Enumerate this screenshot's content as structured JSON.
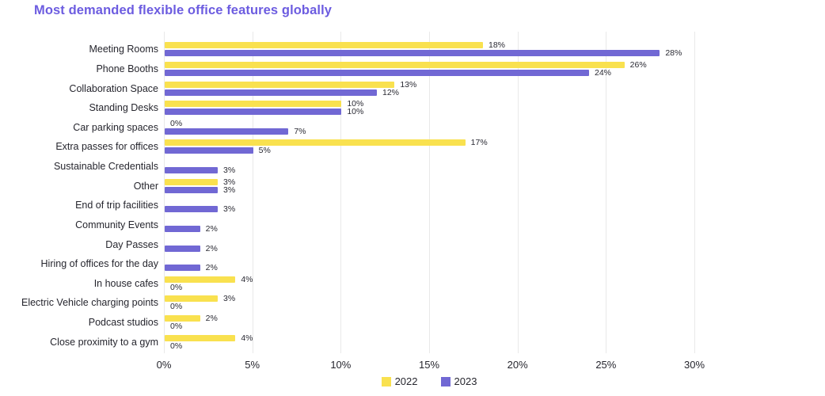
{
  "title": "Most demanded flexible office features globally",
  "colors": {
    "title": "#6C5CE0",
    "gridline": "#E9E9E9",
    "text": "#26262E",
    "background": "#FFFFFF"
  },
  "chart_data": {
    "type": "bar",
    "orientation": "horizontal",
    "title": "Most demanded flexible office features globally",
    "xlabel": "",
    "ylabel": "",
    "xlim": [
      0,
      30
    ],
    "x_ticks": [
      "0%",
      "5%",
      "10%",
      "15%",
      "20%",
      "25%",
      "30%"
    ],
    "x_tick_values": [
      0,
      5,
      10,
      15,
      20,
      25,
      30
    ],
    "grid": "vertical",
    "legend_position": "bottom-center",
    "categories": [
      "Meeting Rooms",
      "Phone Booths",
      "Collaboration Space",
      "Standing Desks",
      "Car parking spaces",
      "Extra passes for offices",
      "Sustainable Credentials",
      "Other",
      "End of trip facilities",
      "Community Events",
      "Day Passes",
      "Hiring of offices for the day",
      "In house cafes",
      "Electric Vehicle charging points",
      "Podcast studios",
      "Close proximity to a gym"
    ],
    "series": [
      {
        "name": "2022",
        "color": "#F9E14F",
        "values": [
          18,
          26,
          13,
          10,
          0,
          17,
          null,
          3,
          null,
          null,
          null,
          null,
          4,
          3,
          2,
          4
        ],
        "labels": [
          "18%",
          "26%",
          "13%",
          "10%",
          "0%",
          "17%",
          null,
          "3%",
          null,
          null,
          null,
          null,
          "4%",
          "3%",
          "2%",
          "4%"
        ]
      },
      {
        "name": "2023",
        "color": "#7168D4",
        "values": [
          28,
          24,
          12,
          10,
          7,
          5,
          3,
          3,
          3,
          2,
          2,
          2,
          0,
          0,
          0,
          0
        ],
        "labels": [
          "28%",
          "24%",
          "12%",
          "10%",
          "7%",
          "5%",
          "3%",
          "3%",
          "3%",
          "2%",
          "2%",
          "2%",
          "0%",
          "0%",
          "0%",
          "0%"
        ]
      }
    ]
  }
}
